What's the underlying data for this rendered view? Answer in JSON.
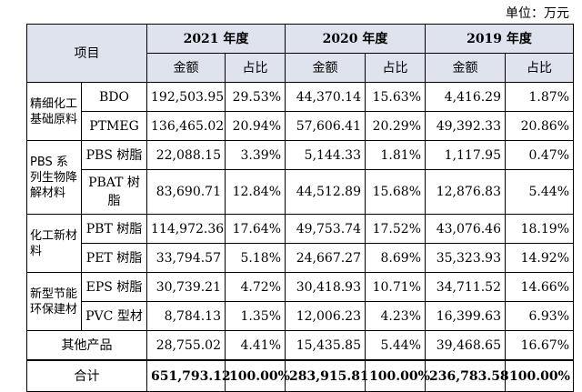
{
  "unit": "单位：万元",
  "header": {
    "item": "项目",
    "years": [
      "2021 年度",
      "2020 年度",
      "2019 年度"
    ],
    "amount": "金额",
    "ratio": "占比"
  },
  "categories": {
    "c1": "精细化工基础原料",
    "c2": "PBS 系列生物降解材料",
    "c3": "化工新材料",
    "c4": "新型节能环保建材"
  },
  "rows": [
    {
      "name": "BDO",
      "vals": [
        "192,503.95",
        "29.53%",
        "44,370.14",
        "15.63%",
        "4,416.29",
        "1.87%"
      ]
    },
    {
      "name": "PTMEG",
      "vals": [
        "136,465.02",
        "20.94%",
        "57,606.41",
        "20.29%",
        "49,392.33",
        "20.86%"
      ]
    },
    {
      "name": "PBS 树脂",
      "vals": [
        "22,088.15",
        "3.39%",
        "5,144.33",
        "1.81%",
        "1,117.95",
        "0.47%"
      ]
    },
    {
      "name": "PBAT 树脂",
      "vals": [
        "83,690.71",
        "12.84%",
        "44,512.89",
        "15.68%",
        "12,876.83",
        "5.44%"
      ]
    },
    {
      "name": "PBT 树脂",
      "vals": [
        "114,972.36",
        "17.64%",
        "49,753.74",
        "17.52%",
        "43,076.46",
        "18.19%"
      ]
    },
    {
      "name": "PET 树脂",
      "vals": [
        "33,794.57",
        "5.18%",
        "24,667.27",
        "8.69%",
        "35,323.93",
        "14.92%"
      ]
    },
    {
      "name": "EPS 树脂",
      "vals": [
        "30,739.21",
        "4.72%",
        "30,418.93",
        "10.71%",
        "34,711.52",
        "14.66%"
      ]
    },
    {
      "name": "PVC 型材",
      "vals": [
        "8,784.13",
        "1.35%",
        "12,006.23",
        "4.23%",
        "16,399.63",
        "6.93%"
      ]
    }
  ],
  "other": {
    "name": "其他产品",
    "vals": [
      "28,755.02",
      "4.41%",
      "15,435.85",
      "5.44%",
      "39,468.65",
      "16.67%"
    ]
  },
  "total": {
    "name": "合计",
    "vals": [
      "651,793.12",
      "100.00%",
      "283,915.81",
      "100.00%",
      "236,783.58",
      "100.00%"
    ]
  }
}
